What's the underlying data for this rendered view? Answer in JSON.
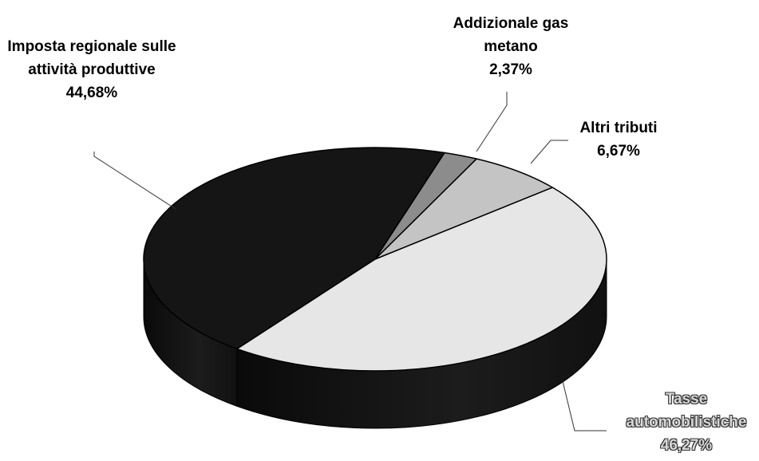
{
  "chart_data": {
    "type": "pie",
    "categories": [
      "Imposta regionale sulle attività produttive",
      "Addizionale gas metano",
      "Altri tributi",
      "Tasse automobilistiche"
    ],
    "values": [
      44.68,
      2.37,
      6.67,
      46.27
    ],
    "value_labels": [
      "44,68%",
      "2,37%",
      "6,67%",
      "46,27%"
    ],
    "colors": [
      "#151515",
      "#8c8c8c",
      "#c4c4c4",
      "#e6e6e6"
    ]
  }
}
